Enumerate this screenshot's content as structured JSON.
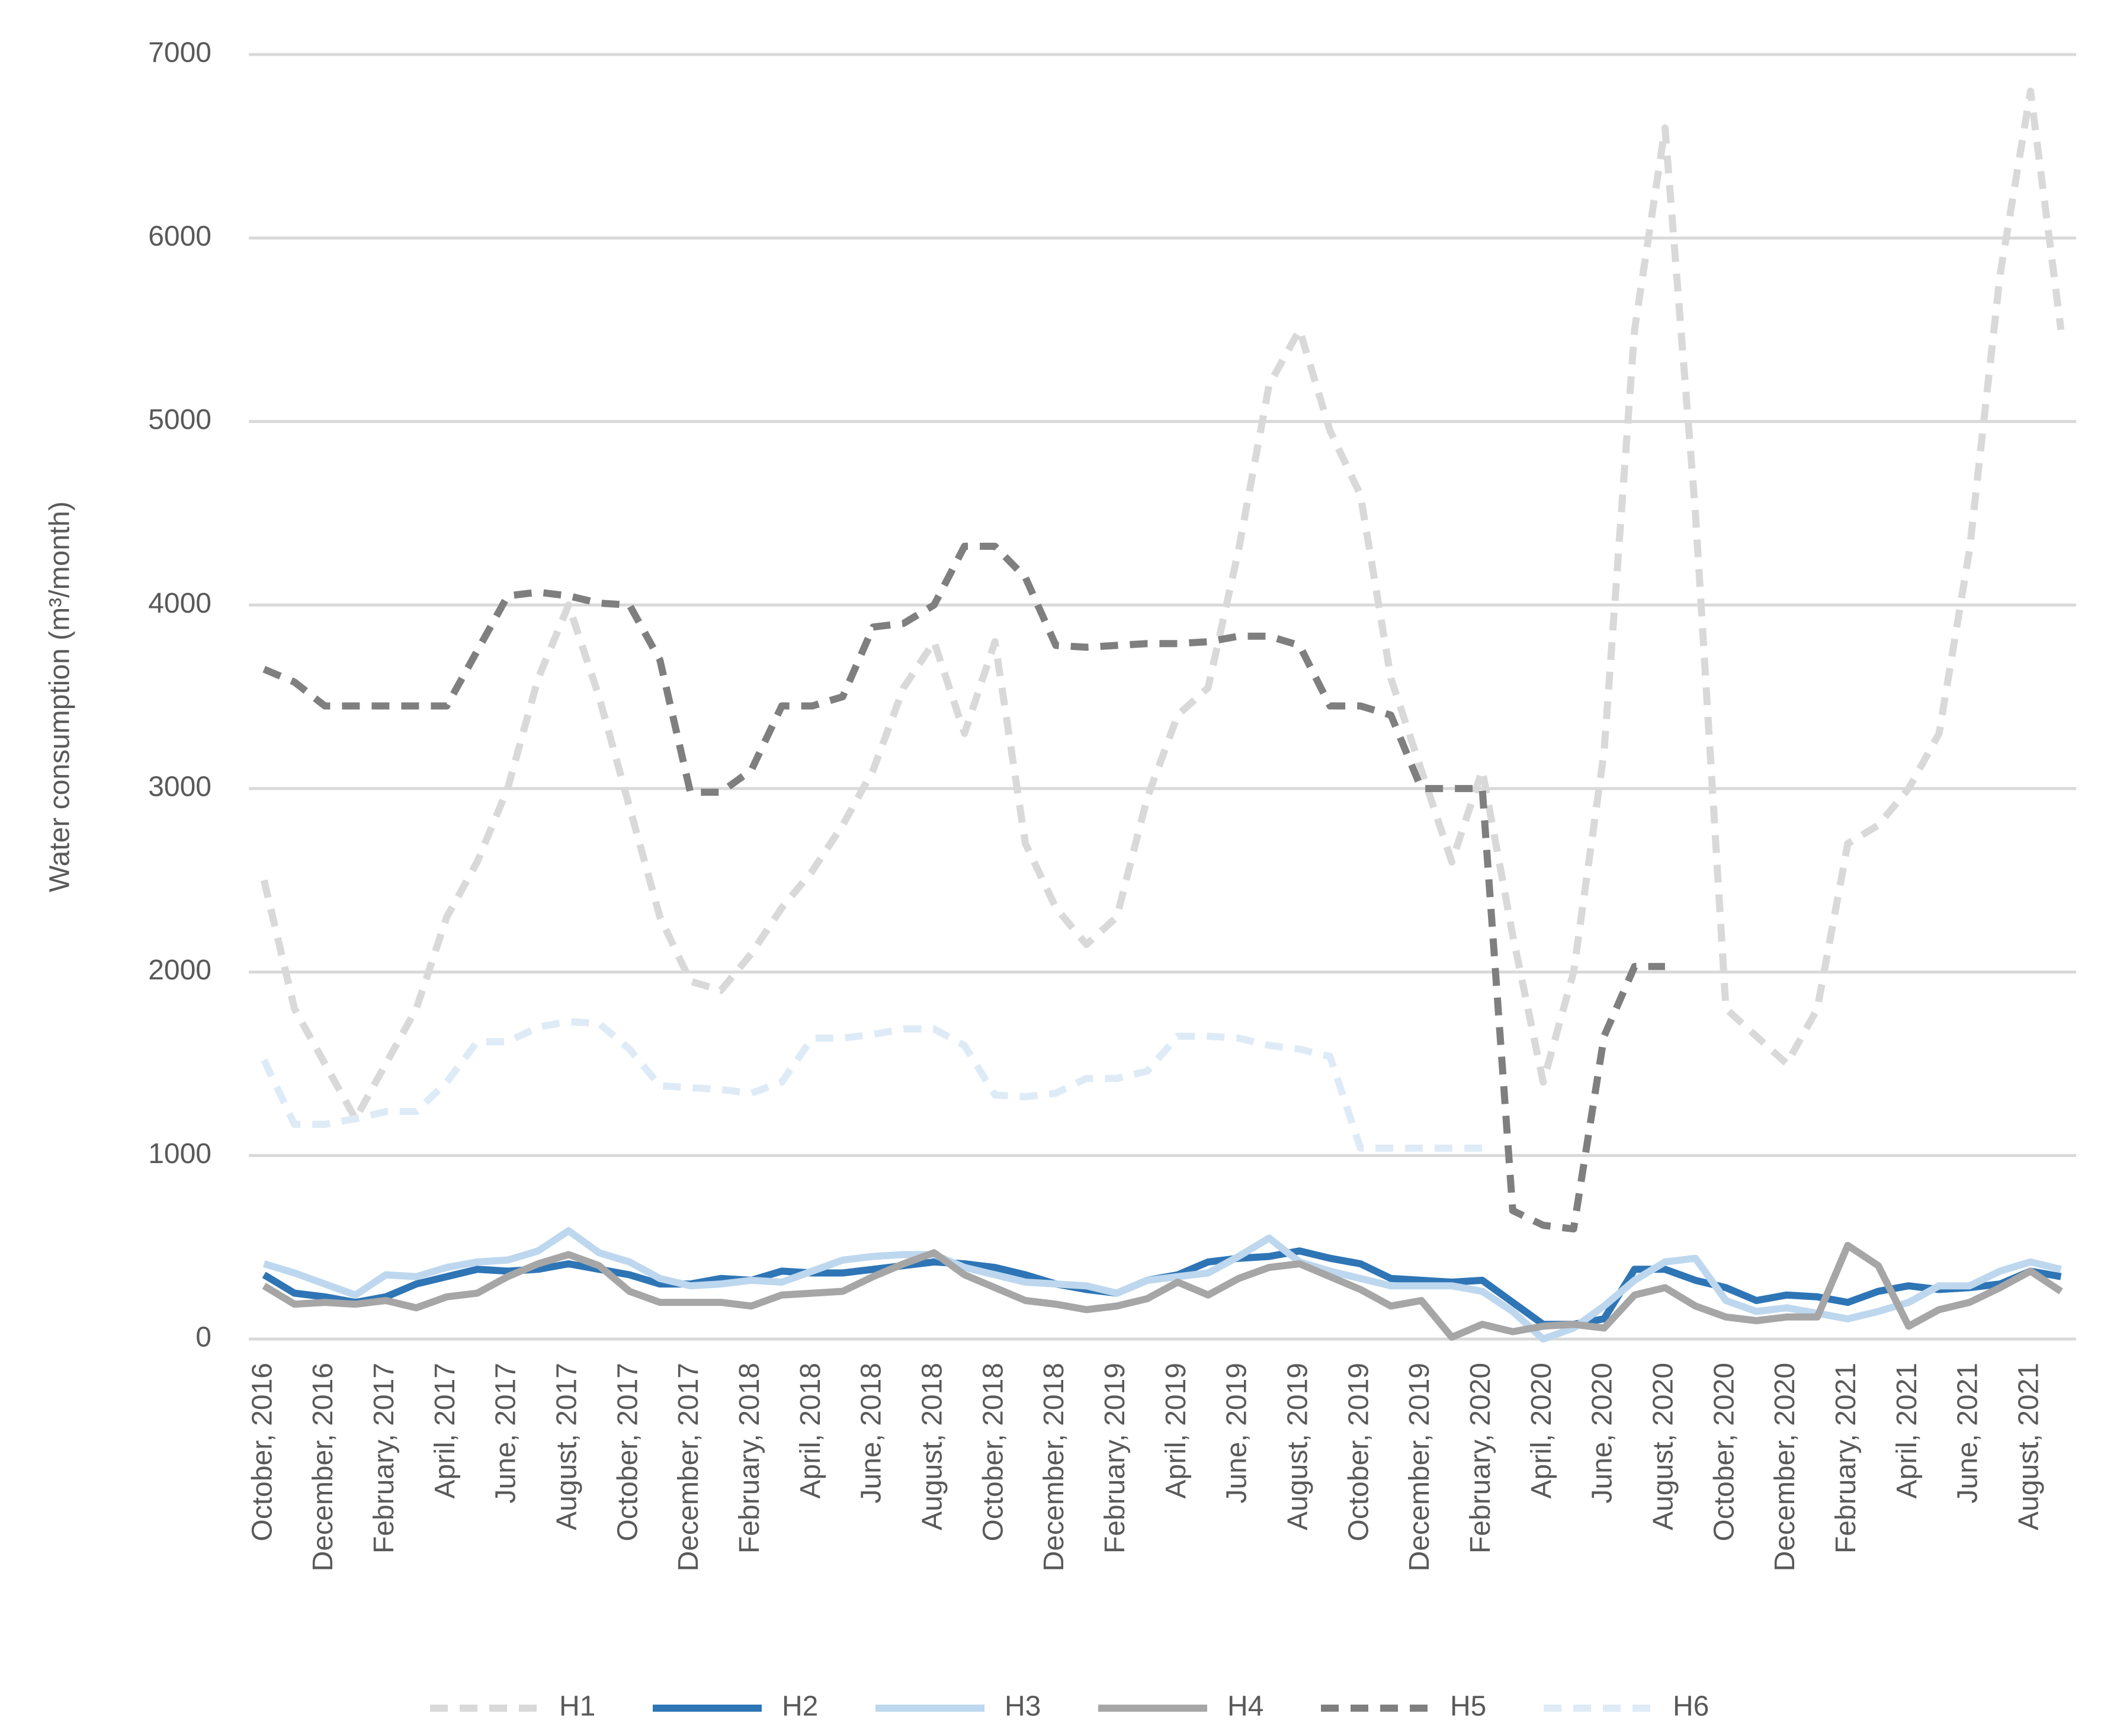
{
  "chart_data": {
    "type": "line",
    "y_label": "Water consumption (m³/month)",
    "categories": [
      "October, 2016",
      null,
      "December, 2016",
      null,
      "February, 2017",
      null,
      "April, 2017",
      null,
      "June, 2017",
      null,
      "August, 2017",
      null,
      "October, 2017",
      null,
      "December, 2017",
      null,
      "February, 2018",
      null,
      "April, 2018",
      null,
      "June, 2018",
      null,
      "August, 2018",
      null,
      "October, 2018",
      null,
      "December, 2018",
      null,
      "February, 2019",
      null,
      "April, 2019",
      null,
      "June, 2019",
      null,
      "August, 2019",
      null,
      "October, 2019",
      null,
      "December, 2019",
      null,
      "February, 2020",
      null,
      "April, 2020",
      null,
      "June, 2020",
      null,
      "August, 2020",
      null,
      "October, 2020",
      null,
      "December, 2020",
      null,
      "February, 2021",
      null,
      "April, 2021",
      null,
      "June, 2021",
      null,
      "August, 2021",
      null
    ],
    "ylim": [
      0,
      7000
    ],
    "yticks": [
      0,
      1000,
      2000,
      3000,
      4000,
      5000,
      6000,
      7000
    ],
    "grid": true,
    "legend": "bottom",
    "series": [
      {
        "name": "H1",
        "color": "#d9d9d9",
        "dashed": true,
        "values": [
          2500,
          1800,
          1500,
          1200,
          1500,
          1800,
          2300,
          2600,
          3000,
          3600,
          4000,
          3500,
          2900,
          2300,
          1950,
          1900,
          2100,
          2350,
          2550,
          2800,
          3100,
          3550,
          3800,
          3300,
          3800,
          2700,
          2350,
          2150,
          2300,
          2950,
          3400,
          3550,
          4300,
          5200,
          5500,
          4950,
          4600,
          3600,
          3100,
          2600,
          3100,
          2200,
          1400,
          2000,
          3200,
          5500,
          6600,
          4500,
          1800,
          1650,
          1500,
          1800,
          2700,
          2800,
          3000,
          3300,
          4300,
          5800,
          6800,
          5500
        ]
      },
      {
        "name": "H2",
        "color": "#2e75b6",
        "dashed": false,
        "values": [
          350,
          250,
          230,
          200,
          230,
          300,
          340,
          380,
          370,
          380,
          410,
          380,
          350,
          300,
          300,
          330,
          320,
          370,
          360,
          360,
          380,
          400,
          420,
          410,
          390,
          350,
          300,
          270,
          250,
          320,
          350,
          420,
          440,
          450,
          480,
          440,
          410,
          330,
          320,
          310,
          320,
          200,
          80,
          80,
          110,
          380,
          380,
          320,
          280,
          210,
          240,
          230,
          200,
          260,
          290,
          270,
          280,
          300,
          370,
          340
        ]
      },
      {
        "name": "H3",
        "color": "#bdd7ee",
        "dashed": false,
        "values": [
          410,
          360,
          300,
          240,
          350,
          340,
          390,
          420,
          430,
          480,
          590,
          470,
          420,
          330,
          290,
          300,
          320,
          310,
          370,
          430,
          450,
          460,
          460,
          390,
          350,
          310,
          300,
          290,
          250,
          320,
          340,
          360,
          450,
          550,
          420,
          370,
          330,
          290,
          290,
          290,
          260,
          150,
          0,
          60,
          180,
          320,
          420,
          440,
          210,
          150,
          170,
          140,
          110,
          150,
          200,
          290,
          290,
          370,
          420,
          380
        ]
      },
      {
        "name": "H4",
        "color": "#a6a6a6",
        "dashed": false,
        "values": [
          290,
          190,
          200,
          190,
          210,
          170,
          230,
          250,
          340,
          410,
          460,
          400,
          260,
          200,
          200,
          200,
          180,
          240,
          250,
          260,
          340,
          410,
          470,
          350,
          280,
          210,
          190,
          160,
          180,
          220,
          310,
          240,
          330,
          390,
          410,
          340,
          270,
          180,
          210,
          10,
          80,
          40,
          70,
          80,
          60,
          240,
          280,
          180,
          120,
          100,
          120,
          120,
          510,
          400,
          70,
          160,
          200,
          280,
          370,
          260
        ]
      },
      {
        "name": "H5",
        "color": "#7f7f7f",
        "dashed": true,
        "values": [
          3650,
          3580,
          3450,
          3450,
          3450,
          3450,
          3450,
          3750,
          4050,
          4070,
          4050,
          4010,
          4000,
          3700,
          2980,
          2980,
          3100,
          3450,
          3450,
          3500,
          3880,
          3900,
          4000,
          4320,
          4320,
          4150,
          3780,
          3770,
          3780,
          3790,
          3790,
          3800,
          3830,
          3830,
          3780,
          3450,
          3450,
          3400,
          3000,
          3000,
          3000,
          700,
          620,
          600,
          1650,
          2030,
          2030,
          null,
          null,
          null,
          null,
          null,
          null,
          null,
          null,
          null,
          null,
          null,
          null,
          null
        ]
      },
      {
        "name": "H6",
        "color": "#deebf7",
        "dashed": true,
        "values": [
          1520,
          1170,
          1170,
          1200,
          1240,
          1240,
          1400,
          1620,
          1620,
          1700,
          1730,
          1720,
          1580,
          1380,
          1370,
          1360,
          1340,
          1400,
          1640,
          1640,
          1660,
          1690,
          1690,
          1600,
          1330,
          1320,
          1340,
          1420,
          1420,
          1460,
          1650,
          1650,
          1640,
          1600,
          1580,
          1540,
          1040,
          1040,
          1040,
          1040,
          1040,
          null,
          null,
          null,
          null,
          null,
          null,
          null,
          null,
          null,
          null,
          null,
          null,
          null,
          null,
          null,
          null,
          null,
          null,
          null
        ]
      }
    ]
  }
}
